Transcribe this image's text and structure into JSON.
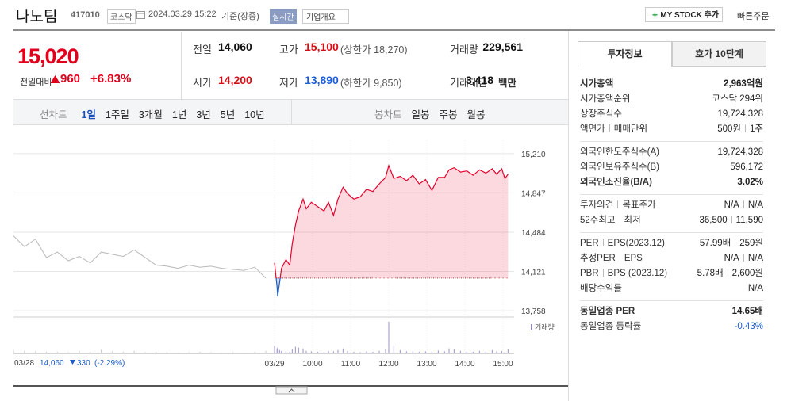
{
  "header": {
    "name": "나노팀",
    "code": "417010",
    "market": "코스닥",
    "datetime": "2024.03.29 15:22",
    "basis": "기준(장중)",
    "realtime": "실시간",
    "company_info": "기업개요",
    "my_stock": "MY STOCK 추가",
    "quick_order": "빠른주문"
  },
  "price": {
    "current": "15,020",
    "change_label": "전일대비",
    "change": "960",
    "rate": "+6.83%",
    "color": "#e0001b"
  },
  "summary": [
    {
      "label": "전일",
      "value": "14,060",
      "color": "#111111"
    },
    {
      "label": "고가",
      "value": "15,100",
      "note": "(상한가 18,270)",
      "color": "#d80e16"
    },
    {
      "label": "거래량",
      "value": "229,561",
      "color": "#111111"
    },
    {
      "label": "시가",
      "value": "14,200",
      "color": "#d80e16"
    },
    {
      "label": "저가",
      "value": "13,890",
      "note": "(하한가 9,850)",
      "color": "#1b5ed7"
    },
    {
      "label": "거래대금",
      "value": "3,418",
      "unit": "백만",
      "color": "#111111"
    }
  ],
  "periods": {
    "line_label": "선차트",
    "line": [
      "1일",
      "1주일",
      "3개월",
      "1년",
      "3년",
      "5년",
      "10년"
    ],
    "line_active": 0,
    "candle_label": "봉차트",
    "candle": [
      "일봉",
      "주봉",
      "월봉"
    ]
  },
  "chart_data": {
    "type": "line",
    "ylim": [
      13700,
      15275
    ],
    "yticks": [
      {
        "value": 15210,
        "label": "15,210"
      },
      {
        "value": 14847,
        "label": "14,847"
      },
      {
        "value": 14484,
        "label": "14,484"
      },
      {
        "value": 14121,
        "label": "14,121"
      },
      {
        "value": 13758,
        "label": "13,758"
      }
    ],
    "xticks": [
      {
        "value": "09:00",
        "label": "03/29"
      },
      "10:00",
      "11:00",
      "12:00",
      "13:00",
      "14:00",
      "15:00"
    ],
    "grid": true,
    "baseline": 14060,
    "color_up": "#e4002b",
    "color_down": "#1a5cc9",
    "volume_color": "#a9a3d6",
    "volume_label": "거래량",
    "x": [
      "09:00",
      "09:04",
      "09:05",
      "09:08",
      "09:11",
      "09:18",
      "09:24",
      "09:28",
      "09:33",
      "09:38",
      "09:45",
      "09:50",
      "09:58",
      "10:08",
      "10:18",
      "10:25",
      "10:33",
      "10:40",
      "10:48",
      "10:55",
      "11:05",
      "11:15",
      "11:25",
      "11:35",
      "11:45",
      "11:55",
      "12:00",
      "12:08",
      "12:18",
      "12:28",
      "12:38",
      "12:48",
      "12:58",
      "13:08",
      "13:18",
      "13:28",
      "13:35",
      "13:43",
      "13:53",
      "14:03",
      "14:13",
      "14:23",
      "14:33",
      "14:43",
      "14:50",
      "14:58",
      "15:03",
      "15:08"
    ],
    "values": [
      14200,
      13980,
      13890,
      14020,
      14150,
      14230,
      14180,
      14380,
      14550,
      14680,
      14790,
      14700,
      14760,
      14720,
      14680,
      14760,
      14640,
      14790,
      14900,
      14840,
      14790,
      14810,
      14880,
      14860,
      14930,
      14990,
      15100,
      14980,
      15000,
      14960,
      15010,
      14930,
      14970,
      14870,
      14990,
      14990,
      15060,
      15080,
      15040,
      15050,
      15010,
      15060,
      15030,
      15070,
      15020,
      15070,
      14980,
      15020
    ],
    "volumes": [
      9000,
      6000,
      7000,
      4000,
      3000,
      2500,
      2000,
      5000,
      8000,
      7000,
      6000,
      3000,
      2500,
      2000,
      1500,
      3000,
      2500,
      4000,
      6000,
      3000,
      2000,
      1500,
      2500,
      2000,
      3000,
      5000,
      38000,
      9000,
      4000,
      2500,
      3000,
      2000,
      2500,
      2000,
      3500,
      2500,
      6000,
      5000,
      3000,
      2500,
      2000,
      3000,
      2500,
      4000,
      2500,
      3000,
      2000,
      5000
    ],
    "prev_day": {
      "label": "03/28",
      "close": "14,060",
      "change": "330",
      "rate": "(-2.29%)",
      "color": "#b9b9b9",
      "label_color": "#1a5cc9",
      "values": [
        14450,
        14350,
        14420,
        14250,
        14300,
        14220,
        14260,
        14200,
        14300,
        14280,
        14260,
        14320,
        14250,
        14180,
        14170,
        14150,
        14180,
        14160,
        14170,
        14150,
        14140,
        14130,
        14160,
        14060
      ],
      "volumes": [
        4000,
        3000,
        2500,
        2000,
        2000,
        1500,
        3000,
        2000,
        4500,
        2500,
        2000,
        3000,
        1500,
        2000,
        1500,
        1000,
        1500,
        2000,
        1500,
        1000,
        1500,
        1000,
        2000,
        3000
      ]
    }
  },
  "info": {
    "tabs": [
      "투자정보",
      "호가 10단계"
    ],
    "active_tab": 0,
    "groups": [
      [
        {
          "labels": [
            "시가총액"
          ],
          "values": [
            "2,963억원"
          ],
          "bold": true
        },
        {
          "labels": [
            "시가총액순위"
          ],
          "values": [
            "코스닥 294위"
          ]
        },
        {
          "labels": [
            "상장주식수"
          ],
          "values": [
            "19,724,328"
          ]
        },
        {
          "labels": [
            "액면가",
            "매매단위"
          ],
          "values": [
            "500원",
            "1주"
          ]
        }
      ],
      [
        {
          "labels": [
            "외국인한도주식수(A)"
          ],
          "values": [
            "19,724,328"
          ]
        },
        {
          "labels": [
            "외국인보유주식수(B)"
          ],
          "values": [
            "596,172"
          ]
        },
        {
          "labels": [
            "외국인소진율(B/A)"
          ],
          "values": [
            "3.02%"
          ],
          "bold": true
        }
      ],
      [
        {
          "labels": [
            "투자의견",
            "목표주가"
          ],
          "values": [
            "N/A",
            "N/A"
          ]
        },
        {
          "labels": [
            "52주최고",
            "최저"
          ],
          "values": [
            "36,500",
            "11,590"
          ]
        }
      ],
      [
        {
          "labels": [
            "PER",
            "EPS(2023.12)"
          ],
          "values": [
            "57.99배",
            "259원"
          ]
        },
        {
          "labels": [
            "추정PER",
            "EPS"
          ],
          "values": [
            "N/A",
            "N/A"
          ]
        },
        {
          "labels": [
            "PBR",
            "BPS (2023.12)"
          ],
          "values": [
            "5.78배",
            "2,600원"
          ]
        },
        {
          "labels": [
            "배당수익률"
          ],
          "values": [
            "N/A"
          ]
        }
      ],
      [
        {
          "labels": [
            "동일업종 PER"
          ],
          "values": [
            "14.65배"
          ],
          "bold": true
        },
        {
          "labels": [
            "동일업종 등락률"
          ],
          "values": [
            "-0.43%"
          ],
          "color": "#1b5ed7"
        }
      ]
    ]
  }
}
